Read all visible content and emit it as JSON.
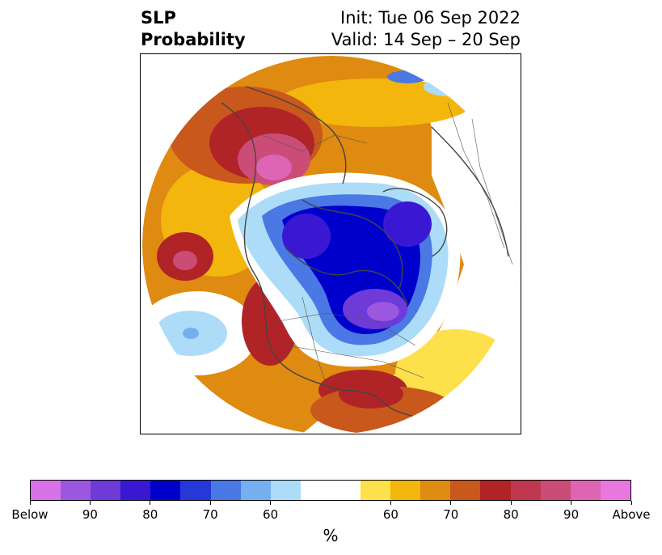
{
  "title": {
    "left_line1": "SLP",
    "left_line2": "Probability",
    "right_line1": "Init: Tue 06 Sep 2022",
    "right_line2": "Valid: 14 Sep – 20 Sep"
  },
  "colorbar": {
    "unit": "%",
    "colors": [
      "#d772e8",
      "#9c57e0",
      "#6e3ad8",
      "#3a18d3",
      "#0000cc",
      "#2638d8",
      "#4a78e4",
      "#74b0f0",
      "#addcf8",
      "#ffffff",
      "#ffffff",
      "#fde04a",
      "#f2b60c",
      "#df8a10",
      "#c9581c",
      "#b02428",
      "#c03850",
      "#cc4c78",
      "#de64b4",
      "#e878e0"
    ],
    "tick_labels": [
      "Below",
      "90",
      "80",
      "70",
      "60",
      "60",
      "70",
      "80",
      "90",
      "Above"
    ]
  },
  "map": {
    "projection": "north-polar",
    "variable": "sea level pressure probability",
    "features": [
      "coastlines",
      "country-borders",
      "state-borders"
    ]
  }
}
